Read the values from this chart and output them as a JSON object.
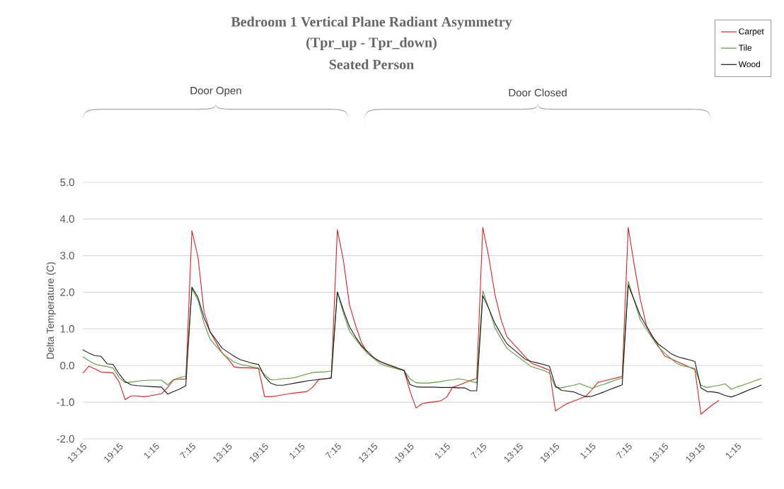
{
  "chart_data": {
    "type": "line",
    "title": "Bedroom 1 Vertical Plane Radiant Asymmetry",
    "subtitle": "(Tpr_up - Tpr_down)",
    "ylabel": "Delta Temperature (C)",
    "annotations": [
      "Seated Person",
      "Door Open",
      "Door Closed"
    ],
    "categories": [
      "13:15",
      null,
      null,
      null,
      null,
      null,
      "19:15",
      null,
      null,
      null,
      null,
      null,
      "1:15",
      null,
      null,
      null,
      null,
      null,
      "7:15",
      null,
      null,
      null,
      null,
      null,
      "13:15",
      null,
      null,
      null,
      null,
      null,
      "19:15",
      null,
      null,
      null,
      null,
      null,
      "1:15",
      null,
      null,
      null,
      null,
      null,
      "7:15",
      null,
      null,
      null,
      null,
      null,
      "13:15",
      null,
      null,
      null,
      null,
      null,
      "19:15",
      null,
      null,
      null,
      null,
      null,
      "1:15",
      null,
      null,
      null,
      null,
      null,
      "7:15",
      null,
      null,
      null,
      null,
      null,
      "13:15",
      null,
      null,
      null,
      null,
      null,
      "19:15",
      null,
      null,
      null,
      null,
      null,
      "1:15",
      null,
      null,
      null,
      null,
      null,
      "7:15",
      null,
      null,
      null,
      null,
      null,
      "13:15",
      null,
      null,
      null,
      null,
      null,
      "19:15",
      null,
      null,
      null,
      null,
      null,
      "1:15",
      null,
      null,
      null,
      null
    ],
    "ylim": [
      -2,
      5
    ],
    "yticks": [
      {
        "value": -2,
        "label": "-2.0"
      },
      {
        "value": -1,
        "label": "-1.0"
      },
      {
        "value": 0,
        "label": "0.0"
      },
      {
        "value": 1,
        "label": "1.0"
      },
      {
        "value": 2,
        "label": "2.0"
      },
      {
        "value": 3,
        "label": "3.0"
      },
      {
        "value": 4,
        "label": "4.0"
      },
      {
        "value": 5,
        "label": "5.0"
      }
    ],
    "grid": "y",
    "legend": "top right",
    "marker": "none",
    "line_style": "solid",
    "series": [
      {
        "name": "Carpet",
        "color": "#e02020",
        "values": [
          -0.21,
          -0.02,
          -0.09,
          -0.18,
          -0.19,
          -0.2,
          -0.45,
          -0.93,
          -0.83,
          -0.83,
          -0.85,
          -0.83,
          -0.8,
          -0.77,
          -0.6,
          -0.39,
          -0.37,
          -0.37,
          3.68,
          2.97,
          1.47,
          0.92,
          0.63,
          0.34,
          0.17,
          -0.04,
          -0.06,
          -0.06,
          -0.07,
          -0.08,
          -0.85,
          -0.85,
          -0.83,
          -0.8,
          -0.77,
          -0.75,
          -0.73,
          -0.71,
          -0.58,
          -0.37,
          -0.36,
          -0.34,
          3.71,
          2.87,
          1.66,
          1.1,
          0.62,
          0.33,
          0.22,
          0.11,
          0.04,
          -0.02,
          -0.08,
          -0.13,
          -0.7,
          -1.16,
          -1.04,
          -1.01,
          -0.99,
          -0.97,
          -0.87,
          -0.6,
          -0.54,
          -0.47,
          -0.41,
          -0.35,
          3.77,
          2.96,
          1.94,
          1.26,
          0.78,
          0.6,
          0.42,
          0.24,
          0.07,
          0.0,
          -0.06,
          -0.13,
          -1.24,
          -1.13,
          -1.03,
          -0.97,
          -0.91,
          -0.84,
          -0.66,
          -0.46,
          -0.42,
          -0.38,
          -0.34,
          -0.3,
          3.77,
          2.73,
          1.8,
          1.09,
          0.8,
          0.52,
          0.26,
          0.19,
          0.11,
          0.04,
          -0.04,
          -0.11,
          -1.33,
          -1.19,
          -1.06,
          -0.95,
          null,
          null,
          null,
          null,
          null,
          null,
          null
        ]
      },
      {
        "name": "Tile",
        "color": "#5a9e3c",
        "values": [
          0.24,
          0.13,
          0.04,
          0.0,
          -0.03,
          -0.07,
          -0.33,
          -0.47,
          -0.45,
          -0.43,
          -0.41,
          -0.4,
          -0.4,
          -0.4,
          -0.53,
          -0.38,
          -0.33,
          -0.29,
          2.1,
          1.79,
          1.16,
          0.72,
          0.53,
          0.34,
          0.21,
          0.09,
          0.03,
          0.0,
          -0.04,
          -0.07,
          -0.25,
          -0.39,
          -0.38,
          -0.36,
          -0.35,
          -0.33,
          -0.28,
          -0.23,
          -0.19,
          -0.18,
          -0.17,
          -0.15,
          2.0,
          1.43,
          0.94,
          0.72,
          0.51,
          0.33,
          0.19,
          0.06,
          -0.01,
          -0.05,
          -0.1,
          -0.14,
          -0.36,
          -0.47,
          -0.48,
          -0.48,
          -0.46,
          -0.44,
          -0.41,
          -0.39,
          -0.36,
          -0.39,
          -0.43,
          -0.47,
          2.04,
          1.56,
          1.03,
          0.74,
          0.47,
          0.34,
          0.22,
          0.09,
          -0.03,
          -0.08,
          -0.13,
          -0.21,
          -0.6,
          -0.61,
          -0.57,
          -0.54,
          -0.49,
          -0.56,
          -0.62,
          -0.56,
          -0.51,
          -0.45,
          -0.39,
          -0.34,
          2.3,
          1.77,
          1.24,
          0.99,
          0.74,
          0.5,
          0.34,
          0.2,
          0.06,
          -0.01,
          -0.04,
          -0.08,
          -0.54,
          -0.6,
          -0.57,
          -0.54,
          -0.5,
          -0.65,
          -0.58,
          -0.53,
          -0.47,
          -0.41,
          -0.35
        ]
      },
      {
        "name": "Wood",
        "color": "#1a1a1a",
        "values": [
          0.43,
          0.34,
          0.27,
          0.25,
          0.05,
          0.03,
          -0.23,
          -0.44,
          -0.53,
          -0.55,
          -0.56,
          -0.57,
          -0.58,
          -0.59,
          -0.78,
          -0.71,
          -0.64,
          -0.55,
          2.14,
          1.86,
          1.31,
          0.92,
          0.7,
          0.47,
          0.36,
          0.25,
          0.16,
          0.11,
          0.06,
          0.03,
          -0.3,
          -0.48,
          -0.54,
          -0.54,
          -0.51,
          -0.48,
          -0.45,
          -0.42,
          -0.4,
          -0.38,
          -0.36,
          -0.34,
          2.01,
          1.51,
          1.06,
          0.78,
          0.54,
          0.38,
          0.22,
          0.11,
          0.05,
          -0.01,
          -0.07,
          -0.13,
          -0.52,
          -0.58,
          -0.59,
          -0.59,
          -0.59,
          -0.6,
          -0.6,
          -0.6,
          -0.61,
          -0.61,
          -0.69,
          -0.69,
          1.91,
          1.55,
          1.15,
          0.86,
          0.59,
          0.45,
          0.31,
          0.17,
          0.11,
          0.07,
          0.03,
          -0.02,
          -0.56,
          -0.68,
          -0.7,
          -0.72,
          -0.79,
          -0.85,
          -0.84,
          -0.78,
          -0.72,
          -0.65,
          -0.59,
          -0.53,
          2.2,
          1.78,
          1.36,
          1.07,
          0.78,
          0.58,
          0.46,
          0.33,
          0.25,
          0.2,
          0.16,
          0.11,
          -0.61,
          -0.71,
          -0.72,
          -0.75,
          -0.82,
          -0.86,
          -0.8,
          -0.73,
          -0.66,
          -0.6,
          -0.53
        ]
      }
    ]
  }
}
